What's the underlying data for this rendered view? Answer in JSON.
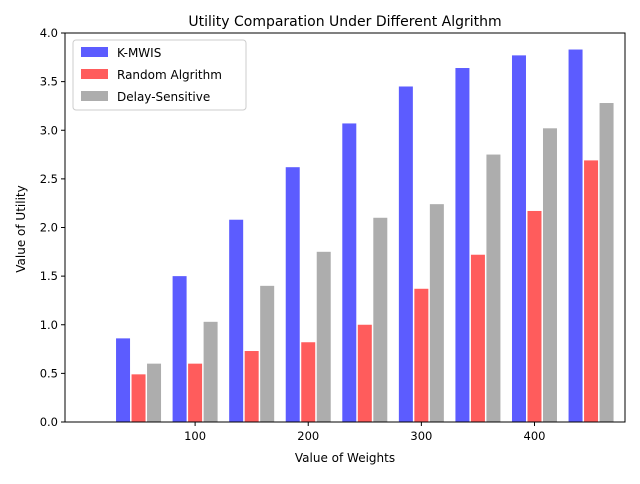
{
  "chart_data": {
    "type": "bar",
    "title": "Utility Comparation Under Different Algrithm",
    "xlabel": "Value of Weights",
    "ylabel": "Value of Utility",
    "x_categories": [
      50,
      100,
      150,
      200,
      250,
      300,
      350,
      400,
      450
    ],
    "xticks": [
      100,
      200,
      300,
      400
    ],
    "xlim": [
      -15,
      480
    ],
    "ylim": [
      0,
      4.0
    ],
    "yticks": [
      0.0,
      0.5,
      1.0,
      1.5,
      2.0,
      2.5,
      3.0,
      3.5,
      4.0
    ],
    "legend_position": "upper left",
    "series": [
      {
        "name": "K-MWIS",
        "color": "#3333ff",
        "values": [
          0.86,
          1.5,
          2.08,
          2.62,
          3.07,
          3.45,
          3.64,
          3.77,
          3.83
        ]
      },
      {
        "name": "Random Algrithm",
        "color": "#ff3333",
        "values": [
          0.49,
          0.6,
          0.73,
          0.82,
          1.0,
          1.37,
          1.72,
          2.17,
          2.69
        ]
      },
      {
        "name": "Delay-Sensitive",
        "color": "#999999",
        "values": [
          0.6,
          1.03,
          1.4,
          1.75,
          2.1,
          2.24,
          2.75,
          3.02,
          3.28
        ]
      }
    ]
  }
}
